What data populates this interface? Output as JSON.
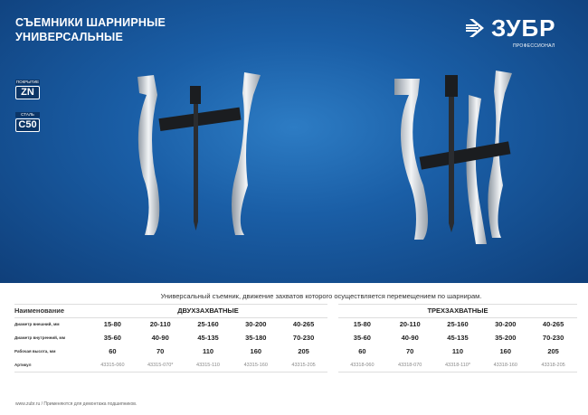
{
  "banner": {
    "title_line1": "СЪЕМНИКИ ШАРНИРНЫЕ",
    "title_line2": "УНИВЕРСАЛЬНЫЕ",
    "logo": {
      "brand": "ЗУБР",
      "sub": "ПРОФЕССИОНАЛ"
    },
    "badges": [
      {
        "label": "ПОКРЫТИЕ",
        "value": "ZN"
      },
      {
        "label": "СТАЛЬ",
        "value": "C50"
      }
    ],
    "accent": "#1a5ea6"
  },
  "caption": "Универсальный съемник, движение захватов которого осуществляется перемещением по шарнирам.",
  "table": {
    "row_labels": [
      "Наименование",
      "Диаметр внешний, мм",
      "Диаметр внутренний, мм",
      "Рабочая высота, мм",
      "Артикул"
    ],
    "groups": [
      {
        "name": "ДВУХЗАХВАТНЫЕ",
        "outer": [
          "15-80",
          "20-110",
          "25-160",
          "30-200",
          "40-265"
        ],
        "inner": [
          "35-60",
          "40-90",
          "45-135",
          "35-180",
          "70-230"
        ],
        "height": [
          "60",
          "70",
          "110",
          "160",
          "205"
        ],
        "article": [
          "43315-060",
          "43315-070*",
          "43315-110",
          "43315-160",
          "43315-205"
        ]
      },
      {
        "name": "ТРЕХЗАХВАТНЫЕ",
        "outer": [
          "15-80",
          "20-110",
          "25-160",
          "30-200",
          "40-265"
        ],
        "inner": [
          "35-60",
          "40-90",
          "45-135",
          "35-200",
          "70-230"
        ],
        "height": [
          "60",
          "70",
          "110",
          "160",
          "205"
        ],
        "article": [
          "43318-060",
          "43318-070",
          "43318-110*",
          "43318-160",
          "43318-205"
        ]
      }
    ]
  },
  "footer": "www.zubr.ru  /  Применяются для демонтажа подшипников."
}
